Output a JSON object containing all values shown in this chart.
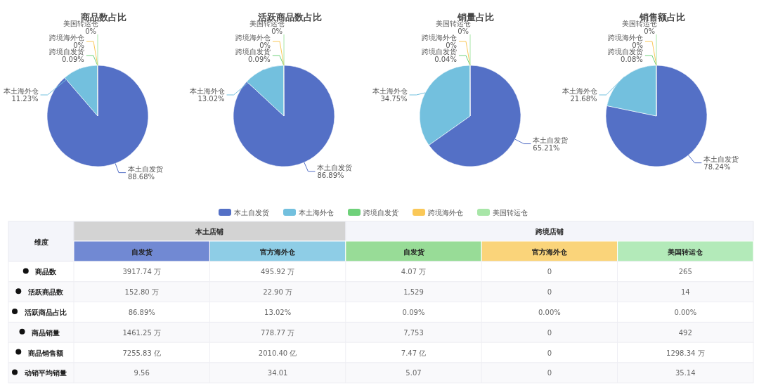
{
  "chart_data": [
    {
      "type": "pie",
      "title": "商品数占比",
      "categories": [
        "本土自发货",
        "本土海外仓",
        "跨境自发货",
        "跨境海外仓",
        "美国转运仓"
      ],
      "values": [
        88.68,
        11.23,
        0.09,
        0,
        0
      ],
      "value_labels": [
        "88.68%",
        "11.23%",
        "0.09%",
        "0%",
        "0%"
      ],
      "colors": [
        "#5470c6",
        "#73c0de",
        "#6fd17a",
        "#fac858",
        "#a8e6a8"
      ],
      "legend": "bottom"
    },
    {
      "type": "pie",
      "title": "活跃商品数占比",
      "categories": [
        "本土自发货",
        "本土海外仓",
        "跨境自发货",
        "跨境海外仓",
        "美国转运仓"
      ],
      "values": [
        86.89,
        13.02,
        0.09,
        0,
        0
      ],
      "value_labels": [
        "86.89%",
        "13.02%",
        "0.09%",
        "0%",
        "0%"
      ],
      "colors": [
        "#5470c6",
        "#73c0de",
        "#6fd17a",
        "#fac858",
        "#a8e6a8"
      ]
    },
    {
      "type": "pie",
      "title": "销量占比",
      "categories": [
        "本土自发货",
        "本土海外仓",
        "跨境自发货",
        "跨境海外仓",
        "美国转运仓"
      ],
      "values": [
        65.21,
        34.75,
        0.04,
        0,
        0
      ],
      "value_labels": [
        "65.21%",
        "34.75%",
        "0.04%",
        "0%",
        "0%"
      ],
      "colors": [
        "#5470c6",
        "#73c0de",
        "#6fd17a",
        "#fac858",
        "#a8e6a8"
      ]
    },
    {
      "type": "pie",
      "title": "销售额占比",
      "categories": [
        "本土自发货",
        "本土海外仓",
        "跨境自发货",
        "跨境海外仓",
        "美国转运仓"
      ],
      "values": [
        78.24,
        21.68,
        0.08,
        0,
        0
      ],
      "value_labels": [
        "78.24%",
        "21.68%",
        "0.08%",
        "0%",
        "0%"
      ],
      "colors": [
        "#5470c6",
        "#73c0de",
        "#6fd17a",
        "#fac858",
        "#a8e6a8"
      ]
    },
    {
      "type": "other",
      "annotations": [
        "维度",
        "本土店铺",
        "跨境店铺"
      ],
      "categories": [
        "自发货",
        "官方海外仓",
        "自发货",
        "官方海外仓",
        "美国转运仓"
      ],
      "colors": [
        "#7189d3",
        "#8ecde6",
        "#98dc97",
        "#fad47a",
        "#b3eab9"
      ],
      "y_categories": [
        "商品数",
        "活跃商品数",
        "活跃商品占比",
        "商品销量",
        "商品销售额",
        "动销平均销量"
      ],
      "cell_labels": [
        [
          "3917.74 万",
          "495.92 万",
          "4.07 万",
          "0",
          "265"
        ],
        [
          "152.80 万",
          "22.90 万",
          "1,529",
          "0",
          "14"
        ],
        [
          "86.89%",
          "13.02%",
          "0.09%",
          "0.00%",
          "0.00%"
        ],
        [
          "1461.25 万",
          "778.77 万",
          "7,753",
          "0",
          "492"
        ],
        [
          "7255.83 亿",
          "2010.40 亿",
          "7.47 亿",
          "0",
          "1298.34 万"
        ],
        [
          "9.56",
          "34.01",
          "5.07",
          "0",
          "35.14"
        ]
      ]
    }
  ]
}
